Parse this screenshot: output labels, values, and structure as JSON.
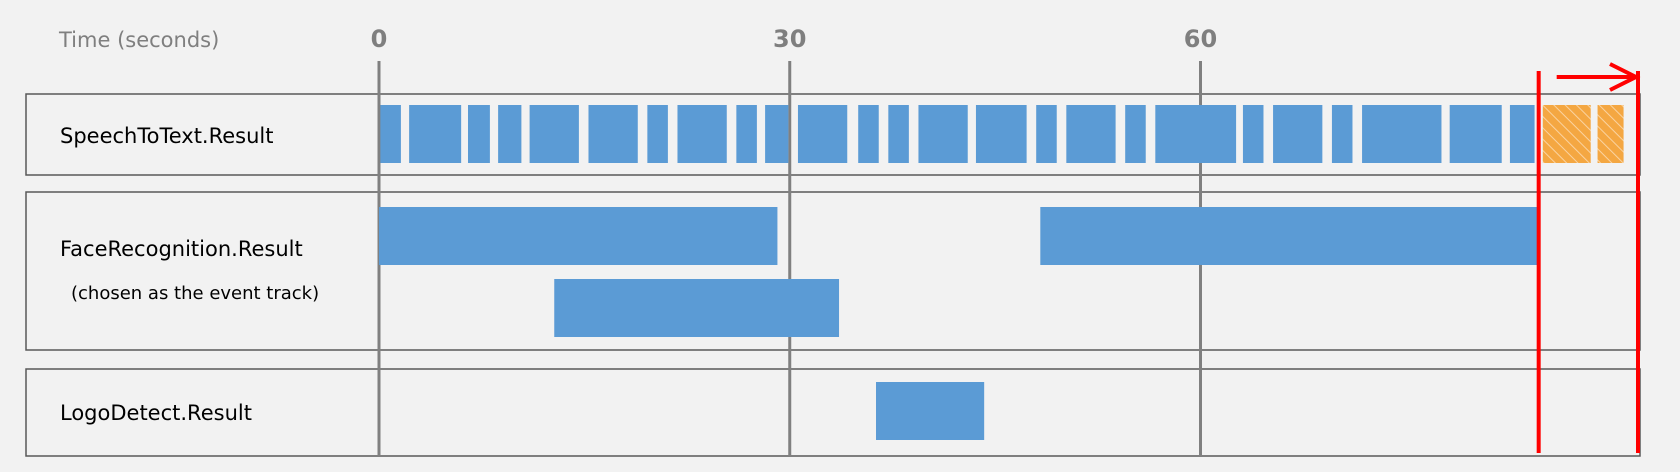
{
  "chart_data": {
    "type": "timeline",
    "axis_label": "Time (seconds)",
    "xlim": [
      0,
      92.1
    ],
    "xticks": [
      0,
      30,
      60
    ],
    "segment_color": "#5b9bd5",
    "pending_color": "#f4a742",
    "window": [
      84.7,
      92.1
    ],
    "window_color": "#ff0000",
    "tracks": [
      {
        "label": "SpeechToText.Result",
        "lanes": [
          [
            [
              0.1,
              1.6
            ],
            [
              2.2,
              6.0
            ],
            [
              6.5,
              8.1
            ],
            [
              8.7,
              10.4
            ],
            [
              11.0,
              14.6
            ],
            [
              15.3,
              18.9
            ],
            [
              19.6,
              21.1
            ],
            [
              21.8,
              25.4
            ],
            [
              26.1,
              27.6
            ],
            [
              28.2,
              29.9
            ],
            [
              30.6,
              34.2
            ],
            [
              35.0,
              36.5
            ],
            [
              37.2,
              38.7
            ],
            [
              39.4,
              43.0
            ],
            [
              43.6,
              47.3
            ],
            [
              48.0,
              49.5
            ],
            [
              50.2,
              53.8
            ],
            [
              54.5,
              56.0
            ],
            [
              56.7,
              62.6
            ],
            [
              63.1,
              64.6
            ],
            [
              65.3,
              68.9
            ],
            [
              69.6,
              71.1
            ],
            [
              71.8,
              77.6
            ],
            [
              78.2,
              82.0
            ],
            [
              82.6,
              84.4
            ]
          ]
        ],
        "pending": [
          [
            85.0,
            88.5
          ],
          [
            89.0,
            90.9
          ]
        ]
      },
      {
        "label": "FaceRecognition.Result",
        "note": "(chosen as the event track)",
        "lanes": [
          [
            [
              0,
              29.1
            ],
            [
              48.3,
              84.6
            ]
          ],
          [
            [
              12.8,
              33.6
            ]
          ]
        ]
      },
      {
        "label": "LogoDetect.Result",
        "lanes": [
          [
            [
              36.3,
              44.2
            ]
          ]
        ]
      }
    ]
  }
}
